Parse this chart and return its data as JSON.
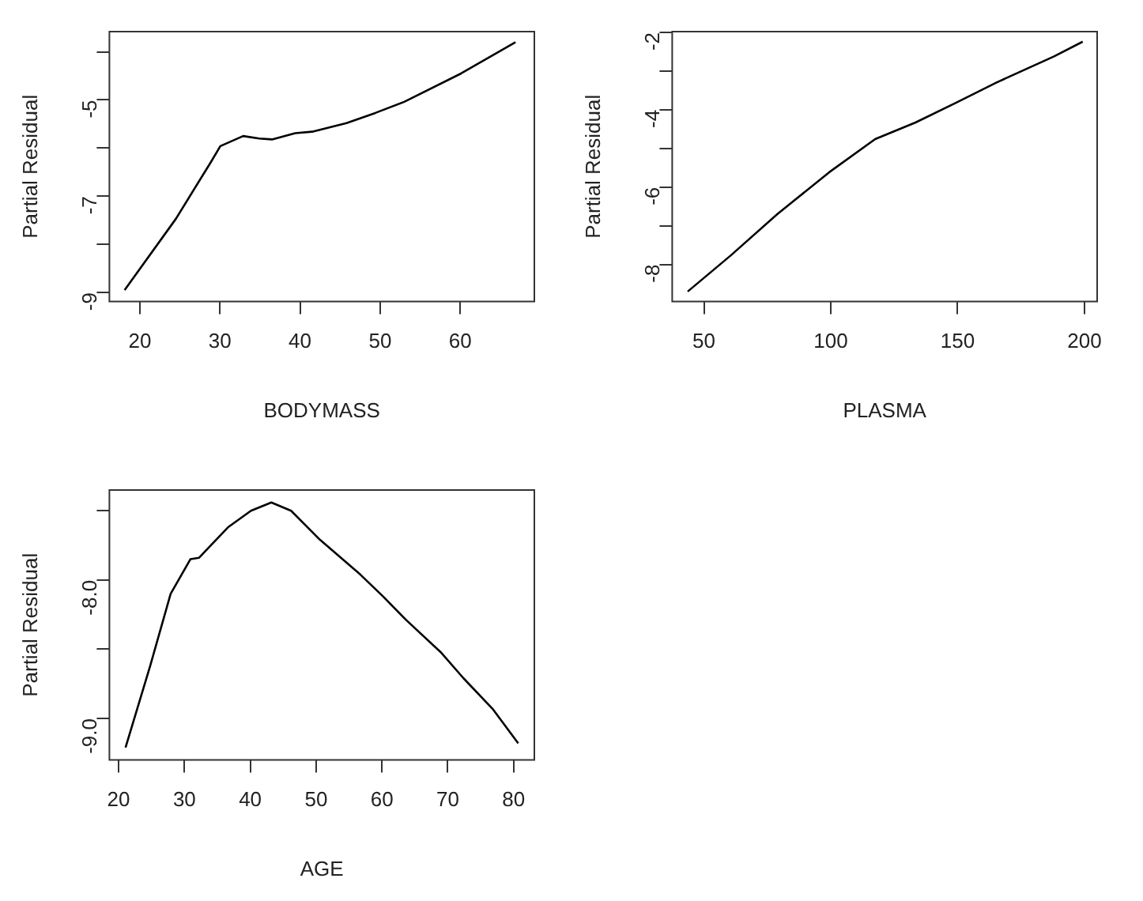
{
  "chart_data": [
    {
      "type": "line",
      "xlabel": "BODYMASS",
      "ylabel": "Partial Residual",
      "grid": false,
      "legend": false,
      "marker": "none",
      "line_style": "solid",
      "xlim": [
        16.2,
        69.25
      ],
      "ylim": [
        -9.19,
        -3.58
      ],
      "xticks": [
        20,
        30,
        40,
        50,
        60
      ],
      "yticks": [
        -9,
        {
          "value": -8,
          "label": null
        },
        -7,
        {
          "value": -6,
          "label": null
        },
        -5,
        {
          "value": -4,
          "label": null
        }
      ],
      "x": [
        18.1,
        24.5,
        28.8,
        30.05,
        32.9,
        34.9,
        36.5,
        39.4,
        41.5,
        45.8,
        49.4,
        53,
        60.1,
        66.9
      ],
      "series": [
        {
          "color": "#000000",
          "values": [
            -8.95,
            -7.47,
            -6.31,
            -5.96,
            -5.75,
            -5.8,
            -5.82,
            -5.69,
            -5.66,
            -5.48,
            -5.27,
            -5.04,
            -4.45,
            -3.8
          ]
        }
      ]
    },
    {
      "type": "line",
      "xlabel": "PLASMA",
      "ylabel": "Partial Residual",
      "grid": false,
      "legend": false,
      "marker": "none",
      "line_style": "solid",
      "xlim": [
        37.5,
        205
      ],
      "ylim": [
        -8.96,
        -1.98
      ],
      "xticks": [
        50,
        100,
        150,
        200
      ],
      "yticks": [
        -8,
        {
          "value": -7,
          "label": null
        },
        -6,
        {
          "value": -5,
          "label": null
        },
        -4,
        {
          "value": -3,
          "label": null
        },
        -2
      ],
      "x": [
        43.6,
        60.7,
        78.9,
        99.3,
        117.5,
        133.4,
        149.3,
        165.2,
        188,
        199.3
      ],
      "series": [
        {
          "color": "#000000",
          "values": [
            -8.7,
            -7.76,
            -6.7,
            -5.62,
            -4.76,
            -4.33,
            -3.82,
            -3.3,
            -2.62,
            -2.24
          ]
        }
      ]
    },
    {
      "type": "line",
      "xlabel": "AGE",
      "ylabel": "Partial Residual",
      "grid": false,
      "legend": false,
      "marker": "none",
      "line_style": "solid",
      "xlim": [
        18.6,
        83.15
      ],
      "ylim": [
        -9.3,
        -7.35
      ],
      "xticks": [
        20,
        30,
        40,
        50,
        60,
        70,
        80
      ],
      "yticks": [
        {
          "value": -9,
          "label": "-9.0"
        },
        {
          "value": -8.5,
          "label": null
        },
        {
          "value": -8,
          "label": "-8.0"
        },
        {
          "value": -7.5,
          "label": null
        }
      ],
      "x": [
        21.05,
        24.8,
        27.9,
        30.9,
        32.2,
        36.6,
        40.1,
        43.2,
        46.2,
        50.6,
        56.7,
        60.2,
        63.7,
        68.9,
        72.4,
        76.8,
        80.7
      ],
      "series": [
        {
          "color": "#000000",
          "values": [
            -9.21,
            -8.62,
            -8.1,
            -7.85,
            -7.84,
            -7.62,
            -7.5,
            -7.44,
            -7.5,
            -7.71,
            -7.96,
            -8.12,
            -8.29,
            -8.52,
            -8.71,
            -8.93,
            -9.18
          ]
        }
      ]
    }
  ]
}
